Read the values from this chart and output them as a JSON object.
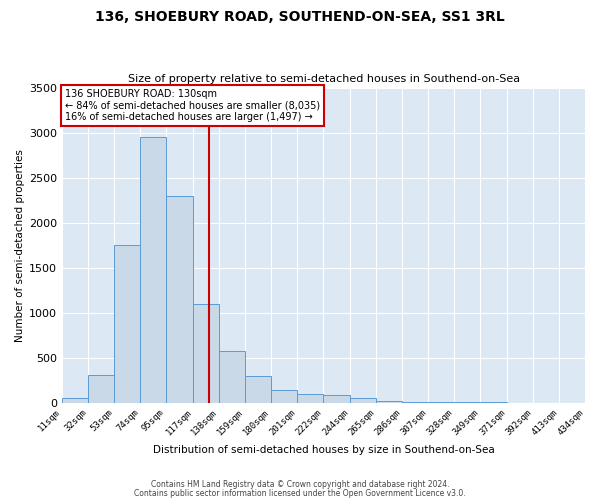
{
  "title1": "136, SHOEBURY ROAD, SOUTHEND-ON-SEA, SS1 3RL",
  "title2": "Size of property relative to semi-detached houses in Southend-on-Sea",
  "xlabel": "Distribution of semi-detached houses by size in Southend-on-Sea",
  "ylabel": "Number of semi-detached properties",
  "footer1": "Contains HM Land Registry data © Crown copyright and database right 2024.",
  "footer2": "Contains public sector information licensed under the Open Government Licence v3.0.",
  "annotation_line1": "136 SHOEBURY ROAD: 130sqm",
  "annotation_line2": "← 84% of semi-detached houses are smaller (8,035)",
  "annotation_line3": "16% of semi-detached houses are larger (1,497) →",
  "bin_edges": [
    11,
    32,
    53,
    74,
    95,
    117,
    138,
    159,
    180,
    201,
    222,
    244,
    265,
    286,
    307,
    328,
    349,
    371,
    392,
    413,
    434
  ],
  "bar_heights": [
    50,
    310,
    1750,
    2950,
    2300,
    1100,
    570,
    300,
    140,
    100,
    80,
    50,
    15,
    10,
    5,
    3,
    2,
    1,
    1,
    0
  ],
  "bar_color": "#c9d9e8",
  "bar_edge_color": "#5b9bd5",
  "vline_color": "#cc0000",
  "vline_x": 130,
  "annotation_box_color": "#cc0000",
  "background_color": "#dce9f5",
  "ylim": [
    0,
    3500
  ],
  "yticks": [
    0,
    500,
    1000,
    1500,
    2000,
    2500,
    3000,
    3500
  ]
}
